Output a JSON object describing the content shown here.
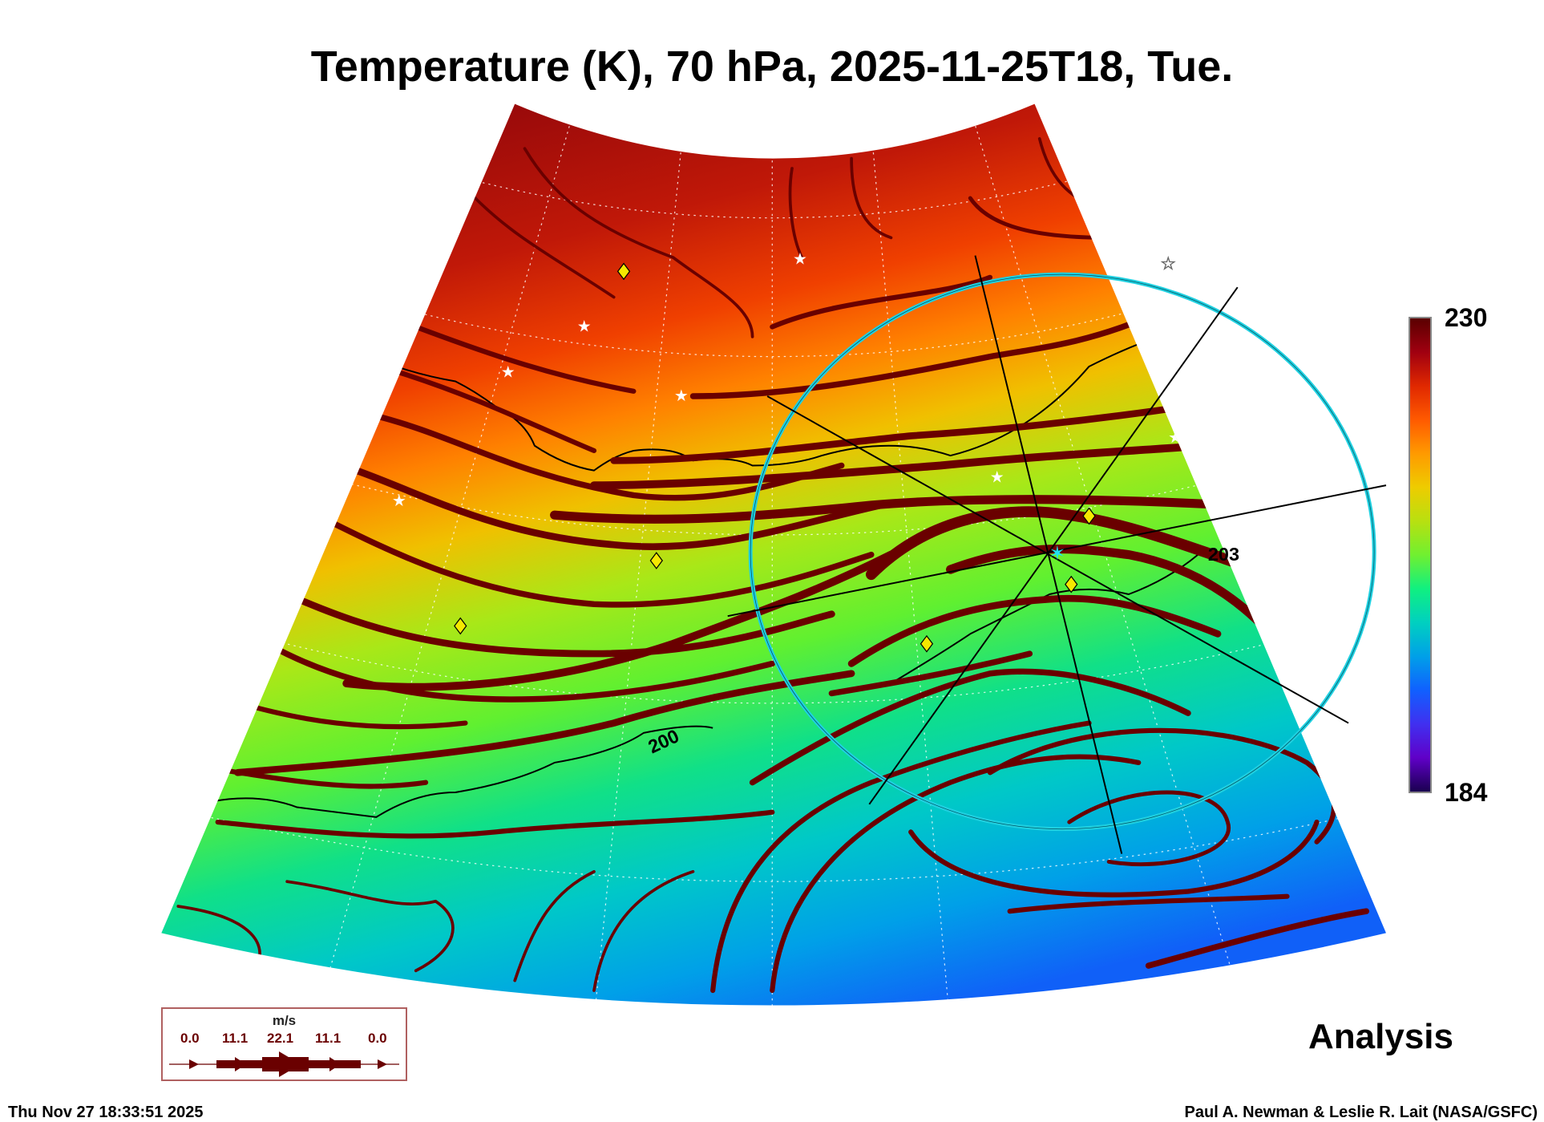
{
  "chart_data": {
    "type": "heatmap",
    "title": "Temperature (K), 70 hPa, 2025-11-25T18, Tue.",
    "variable": "Temperature (K)",
    "level": "70 hPa",
    "colorbar": {
      "max": 230,
      "min": 184,
      "max_label": "230",
      "min_label": "184"
    },
    "contour_labels": [
      "203",
      "200"
    ],
    "wind_legend": {
      "unit": "m/s",
      "values": [
        "0.0",
        "11.1",
        "22.1",
        "11.1",
        "0.0"
      ]
    },
    "product_label": "Analysis"
  },
  "footer": {
    "timestamp": "Thu Nov 27 18:33:51 2025",
    "credit": "Paul A. Newman & Leslie R. Lait (NASA/GSFC)"
  },
  "colors": {
    "streamline": "#6a0000",
    "circle": "#20d0e0",
    "marker": "#f5e800"
  }
}
